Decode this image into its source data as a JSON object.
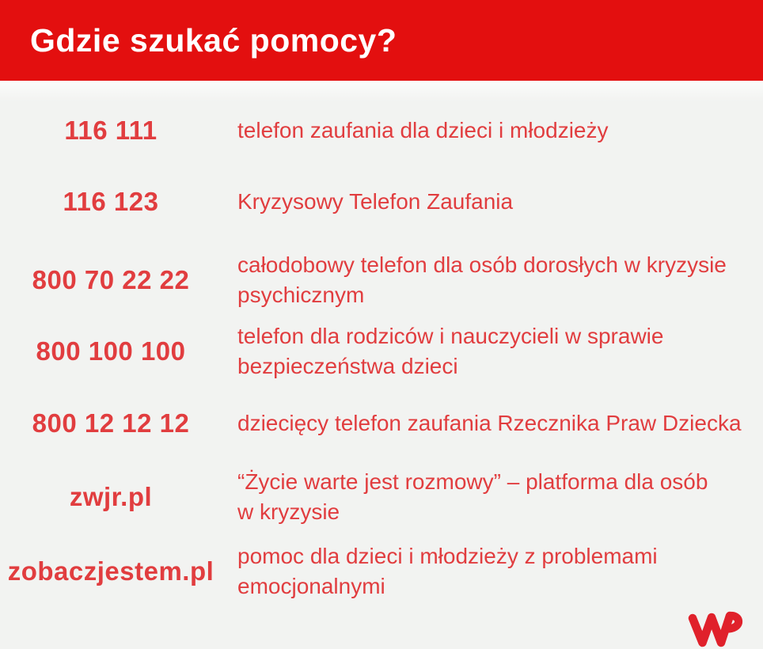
{
  "header": {
    "title": "Gdzie szukać pomocy?"
  },
  "colors": {
    "header_bg": "#e30f0f",
    "body_bg": "#f2f3f1",
    "text_red": "#e13d3f",
    "logo_red": "#e0212b",
    "title_color": "#ffffff"
  },
  "entries": [
    {
      "contact": "116 111",
      "lines": [
        "telefon zaufania dla dzieci i młodzieży"
      ]
    },
    {
      "contact": "116 123",
      "lines": [
        "Kryzysowy Telefon Zaufania"
      ]
    },
    {
      "contact": "800 70 22 22",
      "lines": [
        "całodobowy telefon dla osób dorosłych w kryzysie",
        "psychicznym"
      ]
    },
    {
      "contact": "800 100 100",
      "lines": [
        "telefon dla rodziców i nauczycieli w sprawie",
        "bezpieczeństwa dzieci"
      ]
    },
    {
      "contact": "800 12 12 12",
      "lines": [
        "dziecięcy telefon zaufania Rzecznika Praw Dziecka"
      ]
    },
    {
      "contact": "zwjr.pl",
      "lines": [
        "“Życie warte jest rozmowy” – platforma dla osób",
        "w kryzysie"
      ]
    },
    {
      "contact": "zobaczjestem.pl",
      "lines": [
        "pomoc dla dzieci i młodzieży z problemami",
        "emocjonalnymi"
      ]
    }
  ],
  "logo": {
    "name": "WP"
  }
}
